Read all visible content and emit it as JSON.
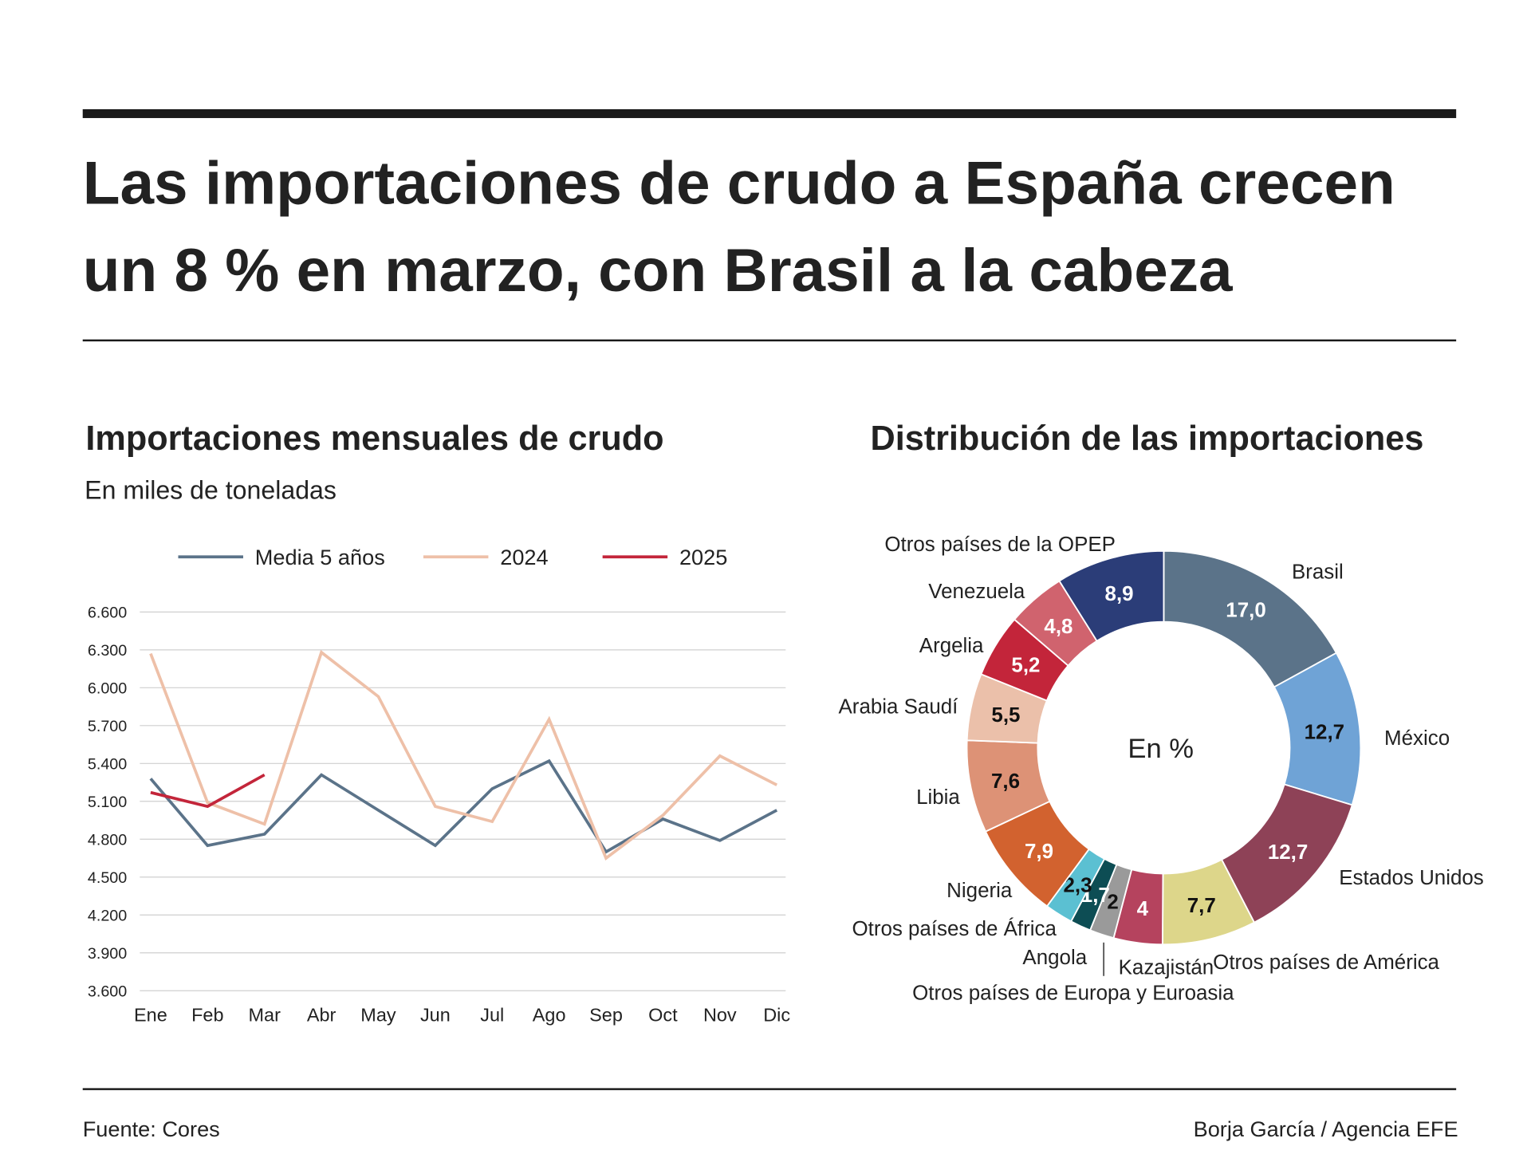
{
  "header": {
    "title": [
      "Las importaciones de crudo a España crecen",
      "un 8 % en marzo, con Brasil a la cabeza"
    ]
  },
  "footer": {
    "source": "Fuente: Cores",
    "credit": "Borja García / Agencia EFE"
  },
  "chart_data": [
    {
      "type": "line",
      "title": "Importaciones mensuales de crudo",
      "subtitle": "En miles de toneladas",
      "categories": [
        "Ene",
        "Feb",
        "Mar",
        "Abr",
        "May",
        "Jun",
        "Jul",
        "Ago",
        "Sep",
        "Oct",
        "Nov",
        "Dic"
      ],
      "series": [
        {
          "name": "Media 5 años",
          "color": "#5b7389",
          "values": [
            5280,
            4750,
            4840,
            5310,
            5030,
            4750,
            5200,
            5420,
            4700,
            4960,
            4790,
            5030
          ]
        },
        {
          "name": "2024",
          "color": "#eec0a8",
          "values": [
            6270,
            5090,
            4920,
            6280,
            5930,
            5060,
            4940,
            5750,
            4650,
            4990,
            5460,
            5230
          ]
        },
        {
          "name": "2025",
          "color": "#c3253a",
          "values": [
            5170,
            5060,
            5310,
            null,
            null,
            null,
            null,
            null,
            null,
            null,
            null,
            null
          ]
        }
      ],
      "ylim": [
        3600,
        6600
      ],
      "yticks": [
        {
          "value": 3600,
          "label": "3.600"
        },
        {
          "value": 3900,
          "label": "3.900"
        },
        {
          "value": 4200,
          "label": "4.200"
        },
        {
          "value": 4500,
          "label": "4.500"
        },
        {
          "value": 4800,
          "label": "4.800"
        },
        {
          "value": 5100,
          "label": "5.100"
        },
        {
          "value": 5400,
          "label": "5.400"
        },
        {
          "value": 5700,
          "label": "5.700"
        },
        {
          "value": 6000,
          "label": "6.000"
        },
        {
          "value": 6300,
          "label": "6.300"
        },
        {
          "value": 6600,
          "label": "6.600"
        }
      ],
      "grid": true,
      "legend": "top"
    },
    {
      "type": "donut",
      "title": "Distribución de las importaciones",
      "center_label": "En %",
      "categories": [
        "Brasil",
        "México",
        "Estados Unidos",
        "Otros países de América",
        "Kazajistán",
        "Otros países de Europa y Euroasia",
        "Angola",
        "Otros países de África",
        "Nigeria",
        "Libia",
        "Arabia Saudí",
        "Argelia",
        "Venezuela",
        "Otros países de la OPEP"
      ],
      "values": [
        17.0,
        12.7,
        12.7,
        7.7,
        4,
        2,
        1.7,
        2.3,
        7.9,
        7.6,
        5.5,
        5.2,
        4.8,
        8.9
      ],
      "value_labels": [
        "17,0",
        "12,7",
        "12,7",
        "7,7",
        "4",
        "2",
        "1,7",
        "2,3",
        "7,9",
        "7,6",
        "5,5",
        "5,2",
        "4,8",
        "8,9"
      ],
      "colors": [
        "#5b7389",
        "#6fa3d6",
        "#8e4257",
        "#ddd68a",
        "#b5435e",
        "#9a9a9a",
        "#0d4d54",
        "#5bc0d2",
        "#d2622f",
        "#dd9276",
        "#ebc0aa",
        "#c3253a",
        "#d0636e",
        "#2b3d78"
      ]
    }
  ]
}
